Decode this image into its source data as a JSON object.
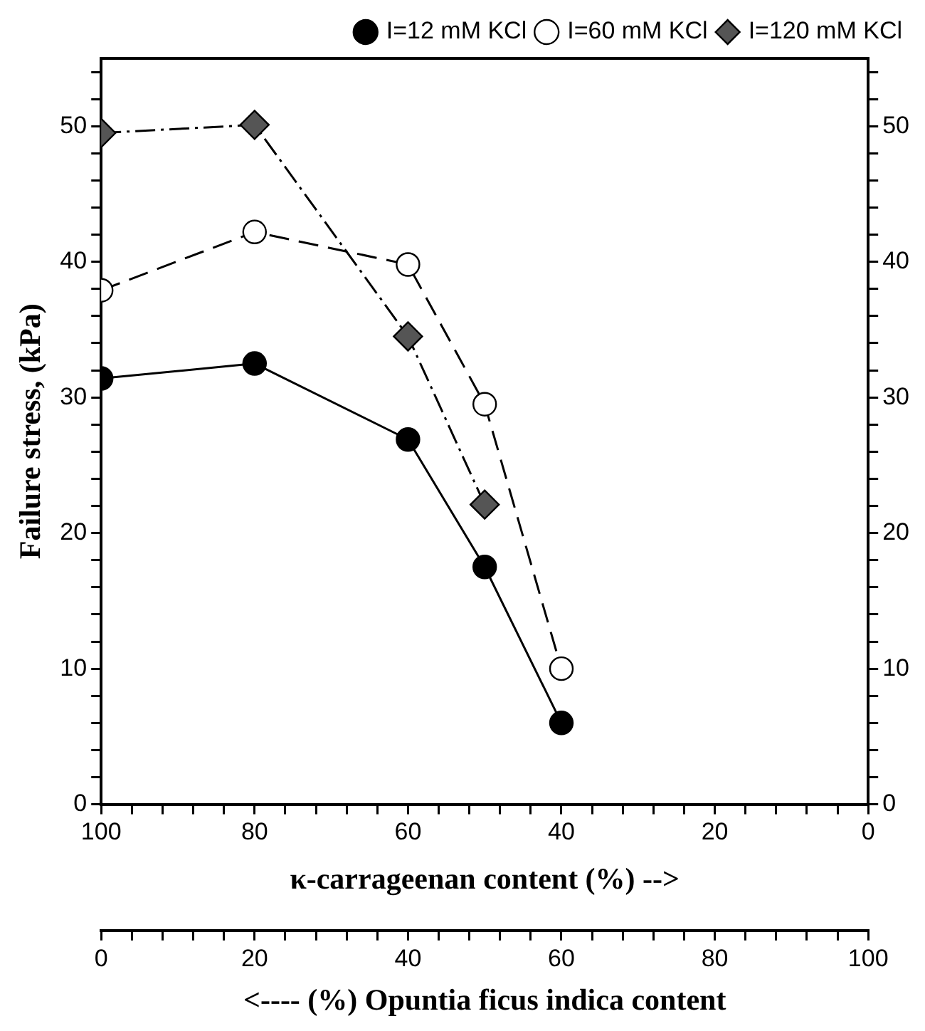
{
  "chart_data": {
    "type": "line",
    "xlabel": "κ-carrageenan content (%) -->",
    "ylabel": "Failure stress, (kPa)",
    "x2label": "<---- (%) Opuntia ficus indica content",
    "x": [
      100,
      80,
      60,
      50,
      40
    ],
    "series": [
      {
        "name": "I=12 mM KCl",
        "color": "#000000",
        "marker": "circle",
        "line_style": "solid",
        "values": [
          31.4,
          32.5,
          26.9,
          17.5,
          6.0
        ]
      },
      {
        "name": "I=60 mM KCl",
        "color": "#ffffff",
        "marker": "circle",
        "line_style": "dashed",
        "values": [
          37.9,
          42.2,
          39.8,
          29.5,
          10.0
        ]
      },
      {
        "name": "I=120 mM KCl",
        "color": "#555555",
        "marker": "diamond",
        "line_style": "dashdot",
        "values": [
          49.5,
          50.1,
          34.5,
          22.1,
          null
        ]
      }
    ],
    "xlim": [
      100,
      0
    ],
    "xticks": [
      0,
      {
        "value": 4,
        "label": null
      },
      {
        "value": 8,
        "label": null
      },
      {
        "value": 12,
        "label": null
      },
      {
        "value": 16,
        "label": null
      },
      20,
      {
        "value": 24,
        "label": null
      },
      {
        "value": 28,
        "label": null
      },
      {
        "value": 32,
        "label": null
      },
      {
        "value": 36,
        "label": null
      },
      40,
      {
        "value": 44,
        "label": null
      },
      {
        "value": 48,
        "label": null
      },
      {
        "value": 52,
        "label": null
      },
      {
        "value": 56,
        "label": null
      },
      60,
      {
        "value": 64,
        "label": null
      },
      {
        "value": 68,
        "label": null
      },
      {
        "value": 72,
        "label": null
      },
      {
        "value": 76,
        "label": null
      },
      80,
      {
        "value": 84,
        "label": null
      },
      {
        "value": 88,
        "label": null
      },
      {
        "value": 92,
        "label": null
      },
      {
        "value": 96,
        "label": null
      },
      100
    ],
    "x2lim": [
      0,
      100
    ],
    "x2ticks": [
      0,
      {
        "value": 4,
        "label": null
      },
      {
        "value": 8,
        "label": null
      },
      {
        "value": 12,
        "label": null
      },
      {
        "value": 16,
        "label": null
      },
      20,
      {
        "value": 24,
        "label": null
      },
      {
        "value": 28,
        "label": null
      },
      {
        "value": 32,
        "label": null
      },
      {
        "value": 36,
        "label": null
      },
      40,
      {
        "value": 44,
        "label": null
      },
      {
        "value": 48,
        "label": null
      },
      {
        "value": 52,
        "label": null
      },
      {
        "value": 56,
        "label": null
      },
      60,
      {
        "value": 64,
        "label": null
      },
      {
        "value": 68,
        "label": null
      },
      {
        "value": 72,
        "label": null
      },
      {
        "value": 76,
        "label": null
      },
      80,
      {
        "value": 84,
        "label": null
      },
      {
        "value": 88,
        "label": null
      },
      {
        "value": 92,
        "label": null
      },
      {
        "value": 96,
        "label": null
      },
      100
    ],
    "ylim": [
      0,
      55
    ],
    "yticks": [
      0,
      {
        "value": 2,
        "label": null
      },
      {
        "value": 4,
        "label": null
      },
      {
        "value": 6,
        "label": null
      },
      {
        "value": 8,
        "label": null
      },
      10,
      {
        "value": 12,
        "label": null
      },
      {
        "value": 14,
        "label": null
      },
      {
        "value": 16,
        "label": null
      },
      {
        "value": 18,
        "label": null
      },
      20,
      {
        "value": 22,
        "label": null
      },
      {
        "value": 24,
        "label": null
      },
      {
        "value": 26,
        "label": null
      },
      {
        "value": 28,
        "label": null
      },
      30,
      {
        "value": 32,
        "label": null
      },
      {
        "value": 34,
        "label": null
      },
      {
        "value": 36,
        "label": null
      },
      {
        "value": 38,
        "label": null
      },
      40,
      {
        "value": 42,
        "label": null
      },
      {
        "value": 44,
        "label": null
      },
      {
        "value": 46,
        "label": null
      },
      {
        "value": 48,
        "label": null
      },
      50,
      {
        "value": 52,
        "label": null
      },
      {
        "value": 54,
        "label": null
      }
    ],
    "y2lim": [
      0,
      55
    ],
    "y2ticks": [
      0,
      {
        "value": 2,
        "label": null
      },
      {
        "value": 4,
        "label": null
      },
      {
        "value": 6,
        "label": null
      },
      {
        "value": 8,
        "label": null
      },
      10,
      {
        "value": 12,
        "label": null
      },
      {
        "value": 14,
        "label": null
      },
      {
        "value": 16,
        "label": null
      },
      {
        "value": 18,
        "label": null
      },
      20,
      {
        "value": 22,
        "label": null
      },
      {
        "value": 24,
        "label": null
      },
      {
        "value": 26,
        "label": null
      },
      {
        "value": 28,
        "label": null
      },
      30,
      {
        "value": 32,
        "label": null
      },
      {
        "value": 34,
        "label": null
      },
      {
        "value": 36,
        "label": null
      },
      {
        "value": 38,
        "label": null
      },
      40,
      {
        "value": 42,
        "label": null
      },
      {
        "value": 44,
        "label": null
      },
      {
        "value": 46,
        "label": null
      },
      {
        "value": 48,
        "label": null
      },
      50,
      {
        "value": 52,
        "label": null
      },
      {
        "value": 54,
        "label": null
      }
    ],
    "grid": false,
    "legend": "top right"
  }
}
